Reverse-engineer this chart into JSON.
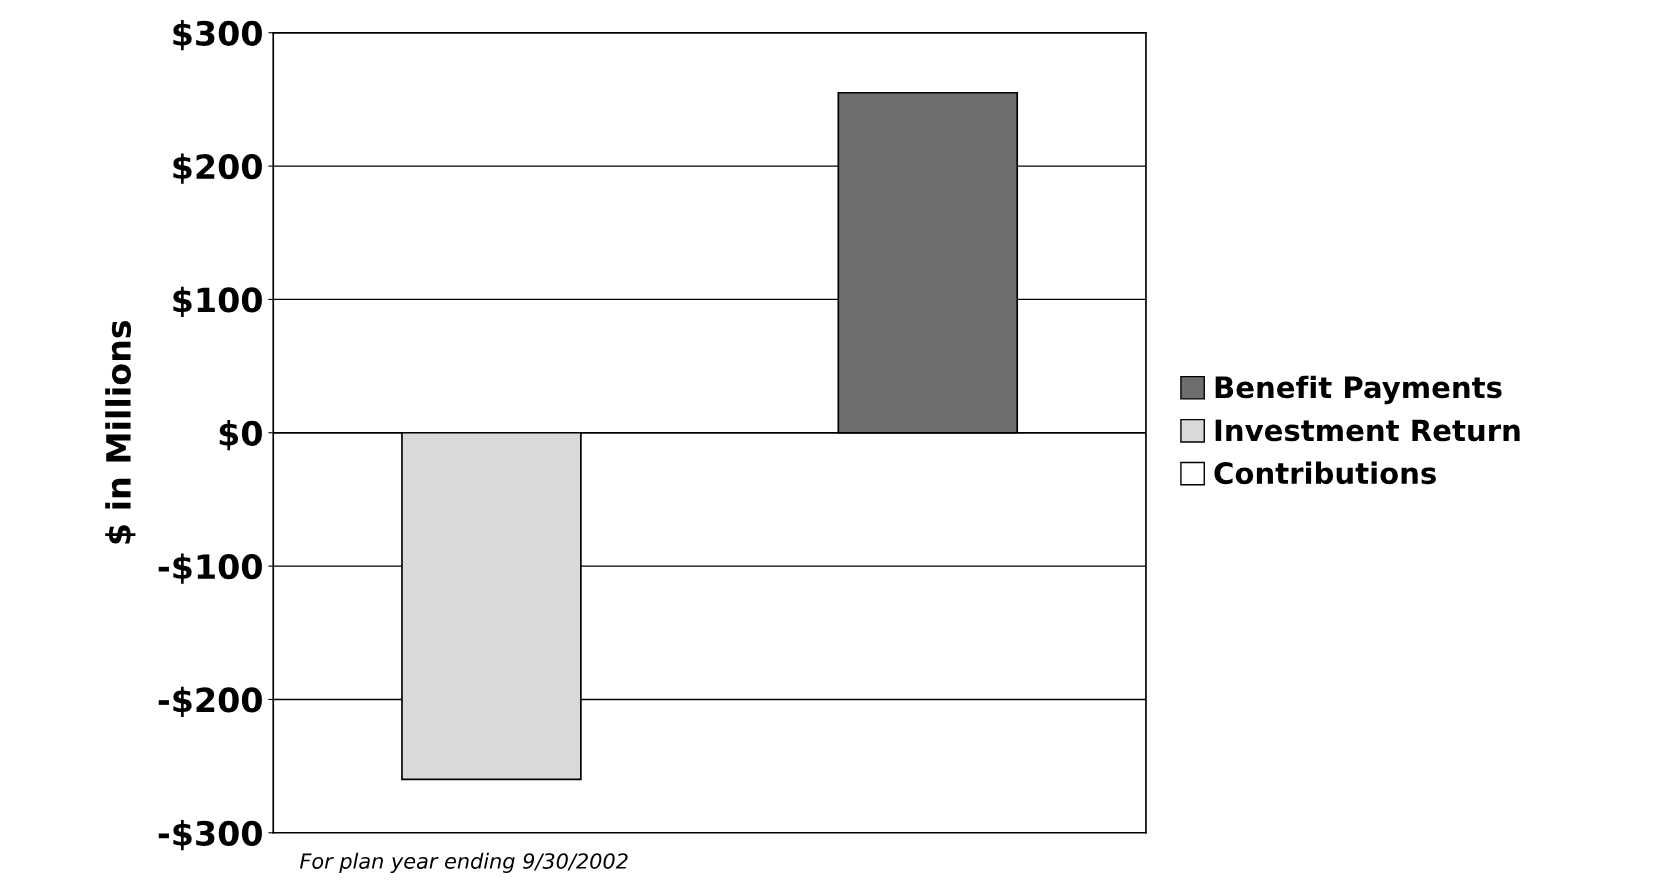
{
  "chart_data": {
    "type": "bar",
    "ylabel": "$ in Millions",
    "categories": [
      null,
      null
    ],
    "series": [
      {
        "name": "Benefit Payments",
        "color": "#6e6e6e",
        "values": [
          null,
          255
        ]
      },
      {
        "name": "Investment Return",
        "color": "#d9d9d9",
        "values": [
          -260,
          null
        ]
      },
      {
        "name": "Contributions",
        "color": "#ffffff",
        "values": [
          null,
          null
        ]
      }
    ],
    "ylim": [
      -300,
      300
    ],
    "yticks": [
      {
        "value": -300,
        "label": "-$300"
      },
      {
        "value": -200,
        "label": "-$200"
      },
      {
        "value": -100,
        "label": "-$100"
      },
      {
        "value": 0,
        "label": "$0"
      },
      {
        "value": 100,
        "label": "$100"
      },
      {
        "value": 200,
        "label": "$200"
      },
      {
        "value": 300,
        "label": "$300"
      }
    ],
    "grid": "y",
    "legend": "right",
    "annotations": [
      "For plan year ending 9/30/2002"
    ]
  }
}
